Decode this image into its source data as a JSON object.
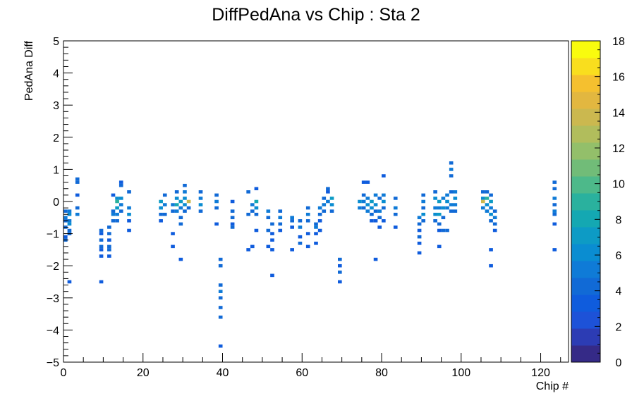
{
  "chart_data": {
    "type": "heatmap",
    "title": "DiffPedAna vs Chip : Sta 2",
    "xlabel": "Chip #",
    "ylabel": "PedAna Diff",
    "xlim": [
      0,
      127
    ],
    "ylim": [
      -5,
      5
    ],
    "x_ticks": [
      "0",
      "20",
      "40",
      "60",
      "80",
      "100",
      "120"
    ],
    "y_ticks": [
      "−5",
      "−4",
      "−3",
      "−2",
      "−1",
      "0",
      "1",
      "2",
      "3",
      "4",
      "5"
    ],
    "colorbar": {
      "min": 0,
      "max": 18,
      "ticks": [
        "0",
        "2",
        "4",
        "6",
        "8",
        "10",
        "12",
        "14",
        "16",
        "18"
      ]
    },
    "bin_width_x": 1,
    "bin_height_y": 0.1,
    "cells": [
      [
        0,
        -0.3,
        4
      ],
      [
        0,
        -0.5,
        5
      ],
      [
        0,
        -0.6,
        4
      ],
      [
        0,
        -0.8,
        4
      ],
      [
        0,
        -1.1,
        3
      ],
      [
        0,
        -1.2,
        4
      ],
      [
        1,
        -0.3,
        5
      ],
      [
        1,
        -0.4,
        6
      ],
      [
        1,
        -0.6,
        5
      ],
      [
        1,
        -0.7,
        6
      ],
      [
        1,
        -0.9,
        4
      ],
      [
        1,
        -1.0,
        4
      ],
      [
        1,
        -2.5,
        3
      ],
      [
        3,
        0.6,
        4
      ],
      [
        3,
        0.7,
        4
      ],
      [
        3,
        0.2,
        3
      ],
      [
        3,
        -0.2,
        4
      ],
      [
        3,
        -0.4,
        5
      ],
      [
        9,
        -0.9,
        4
      ],
      [
        9,
        -1.0,
        3
      ],
      [
        9,
        -1.2,
        4
      ],
      [
        9,
        -1.4,
        4
      ],
      [
        9,
        -1.5,
        3
      ],
      [
        9,
        -1.7,
        3
      ],
      [
        9,
        -2.5,
        3
      ],
      [
        11,
        -0.8,
        4
      ],
      [
        11,
        -1.0,
        4
      ],
      [
        11,
        -1.2,
        3
      ],
      [
        11,
        -1.4,
        4
      ],
      [
        11,
        -1.5,
        4
      ],
      [
        11,
        -1.7,
        3
      ],
      [
        12,
        -0.3,
        4
      ],
      [
        12,
        -0.4,
        5
      ],
      [
        12,
        -0.6,
        4
      ],
      [
        12,
        0.2,
        3
      ],
      [
        13,
        0.1,
        6
      ],
      [
        13,
        0.0,
        9
      ],
      [
        13,
        -0.2,
        7
      ],
      [
        13,
        -0.4,
        5
      ],
      [
        13,
        -0.6,
        4
      ],
      [
        14,
        0.5,
        4
      ],
      [
        14,
        0.6,
        3
      ],
      [
        14,
        0.1,
        6
      ],
      [
        14,
        -0.1,
        5
      ],
      [
        14,
        -0.3,
        4
      ],
      [
        16,
        0.3,
        4
      ],
      [
        16,
        -0.2,
        5
      ],
      [
        16,
        -0.4,
        6
      ],
      [
        16,
        -0.6,
        3
      ],
      [
        16,
        -0.9,
        3
      ],
      [
        24,
        0.0,
        7
      ],
      [
        24,
        -0.2,
        6
      ],
      [
        24,
        -0.4,
        4
      ],
      [
        24,
        -0.6,
        3
      ],
      [
        25,
        0.2,
        4
      ],
      [
        25,
        -0.1,
        5
      ],
      [
        25,
        -0.4,
        4
      ],
      [
        27,
        -0.1,
        5
      ],
      [
        27,
        -0.3,
        4
      ],
      [
        27,
        -1.0,
        3
      ],
      [
        27,
        -1.4,
        3
      ],
      [
        28,
        0.3,
        4
      ],
      [
        28,
        0.1,
        6
      ],
      [
        28,
        -0.1,
        8
      ],
      [
        28,
        -0.3,
        5
      ],
      [
        29,
        0.0,
        7
      ],
      [
        29,
        -0.2,
        5
      ],
      [
        29,
        -0.5,
        4
      ],
      [
        29,
        -0.7,
        4
      ],
      [
        29,
        -1.8,
        3
      ],
      [
        30,
        0.5,
        4
      ],
      [
        30,
        0.3,
        5
      ],
      [
        30,
        0.1,
        6
      ],
      [
        30,
        -0.1,
        6
      ],
      [
        30,
        -0.3,
        4
      ],
      [
        31,
        0.0,
        14
      ],
      [
        31,
        -0.2,
        4
      ],
      [
        34,
        0.3,
        4
      ],
      [
        34,
        0.1,
        5
      ],
      [
        34,
        -0.1,
        6
      ],
      [
        34,
        -0.3,
        4
      ],
      [
        38,
        0.2,
        4
      ],
      [
        38,
        0.0,
        5
      ],
      [
        38,
        -0.2,
        4
      ],
      [
        38,
        -0.7,
        3
      ],
      [
        39,
        -1.8,
        4
      ],
      [
        39,
        -2.0,
        4
      ],
      [
        39,
        -2.6,
        4
      ],
      [
        39,
        -2.8,
        5
      ],
      [
        39,
        -3.0,
        4
      ],
      [
        39,
        -3.3,
        4
      ],
      [
        39,
        -3.6,
        4
      ],
      [
        39,
        -4.5,
        3
      ],
      [
        42,
        0.0,
        3
      ],
      [
        42,
        -0.3,
        4
      ],
      [
        42,
        -0.5,
        4
      ],
      [
        42,
        -0.7,
        3
      ],
      [
        42,
        -0.8,
        4
      ],
      [
        46,
        0.3,
        4
      ],
      [
        46,
        -0.4,
        4
      ],
      [
        46,
        -1.5,
        3
      ],
      [
        47,
        -0.1,
        5
      ],
      [
        47,
        -0.3,
        4
      ],
      [
        47,
        -1.4,
        3
      ],
      [
        48,
        0.0,
        8
      ],
      [
        48,
        -0.2,
        6
      ],
      [
        48,
        -0.4,
        4
      ],
      [
        48,
        0.4,
        3
      ],
      [
        48,
        -0.9,
        3
      ],
      [
        51,
        -0.3,
        5
      ],
      [
        51,
        -0.5,
        4
      ],
      [
        51,
        -0.9,
        4
      ],
      [
        51,
        -1.4,
        3
      ],
      [
        52,
        -0.7,
        4
      ],
      [
        52,
        -1.0,
        3
      ],
      [
        52,
        -1.2,
        3
      ],
      [
        52,
        -1.5,
        3
      ],
      [
        52,
        -2.3,
        3
      ],
      [
        54,
        -0.3,
        4
      ],
      [
        54,
        -0.5,
        5
      ],
      [
        54,
        -0.7,
        4
      ],
      [
        54,
        -0.9,
        3
      ],
      [
        57,
        -0.5,
        5
      ],
      [
        57,
        -0.6,
        4
      ],
      [
        57,
        -0.8,
        3
      ],
      [
        57,
        -1.5,
        3
      ],
      [
        59,
        -0.6,
        4
      ],
      [
        59,
        -0.8,
        5
      ],
      [
        59,
        -1.1,
        3
      ],
      [
        59,
        -1.3,
        4
      ],
      [
        61,
        -0.2,
        4
      ],
      [
        61,
        -0.4,
        5
      ],
      [
        61,
        -0.6,
        4
      ],
      [
        61,
        -1.0,
        3
      ],
      [
        61,
        -1.4,
        3
      ],
      [
        63,
        -0.7,
        4
      ],
      [
        63,
        -0.8,
        5
      ],
      [
        63,
        -1.0,
        3
      ],
      [
        63,
        -1.3,
        3
      ],
      [
        64,
        -0.2,
        5
      ],
      [
        64,
        -0.4,
        4
      ],
      [
        64,
        -0.6,
        3
      ],
      [
        64,
        -0.9,
        3
      ],
      [
        65,
        0.1,
        4
      ],
      [
        65,
        -0.1,
        5
      ],
      [
        65,
        -0.3,
        4
      ],
      [
        66,
        0.0,
        5
      ],
      [
        66,
        0.3,
        3
      ],
      [
        66,
        0.4,
        4
      ],
      [
        67,
        0.1,
        7
      ],
      [
        67,
        -0.1,
        6
      ],
      [
        67,
        -0.3,
        4
      ],
      [
        69,
        -1.8,
        4
      ],
      [
        69,
        -2.0,
        3
      ],
      [
        69,
        -2.2,
        4
      ],
      [
        69,
        -2.5,
        3
      ],
      [
        74,
        0.0,
        6
      ],
      [
        74,
        -0.2,
        5
      ],
      [
        75,
        0.2,
        4
      ],
      [
        75,
        0.0,
        5
      ],
      [
        75,
        -0.2,
        4
      ],
      [
        75,
        0.6,
        3
      ],
      [
        76,
        0.1,
        5
      ],
      [
        76,
        -0.1,
        6
      ],
      [
        76,
        -0.3,
        5
      ],
      [
        76,
        0.6,
        3
      ],
      [
        77,
        0.0,
        7
      ],
      [
        77,
        -0.2,
        6
      ],
      [
        77,
        -0.4,
        4
      ],
      [
        77,
        -0.6,
        3
      ],
      [
        78,
        0.2,
        5
      ],
      [
        78,
        -0.1,
        6
      ],
      [
        78,
        -0.3,
        4
      ],
      [
        78,
        -0.6,
        3
      ],
      [
        78,
        -1.8,
        3
      ],
      [
        79,
        0.1,
        4
      ],
      [
        79,
        -0.3,
        5
      ],
      [
        79,
        -0.5,
        4
      ],
      [
        79,
        -0.8,
        3
      ],
      [
        80,
        0.2,
        5
      ],
      [
        80,
        0.0,
        6
      ],
      [
        80,
        -0.2,
        4
      ],
      [
        80,
        -0.6,
        3
      ],
      [
        80,
        0.8,
        3
      ],
      [
        83,
        0.1,
        4
      ],
      [
        83,
        -0.2,
        5
      ],
      [
        83,
        -0.4,
        4
      ],
      [
        83,
        -0.8,
        3
      ],
      [
        89,
        -0.5,
        5
      ],
      [
        89,
        -0.7,
        4
      ],
      [
        89,
        -0.9,
        3
      ],
      [
        89,
        -1.1,
        4
      ],
      [
        89,
        -1.3,
        3
      ],
      [
        89,
        -1.6,
        3
      ],
      [
        90,
        0.2,
        4
      ],
      [
        90,
        0.0,
        5
      ],
      [
        90,
        -0.2,
        4
      ],
      [
        90,
        -0.4,
        6
      ],
      [
        90,
        -0.6,
        4
      ],
      [
        93,
        0.3,
        4
      ],
      [
        93,
        0.1,
        6
      ],
      [
        93,
        -0.2,
        5
      ],
      [
        93,
        -0.4,
        6
      ],
      [
        93,
        -0.6,
        4
      ],
      [
        94,
        0.0,
        7
      ],
      [
        94,
        -0.2,
        5
      ],
      [
        94,
        -0.4,
        7
      ],
      [
        94,
        -0.7,
        4
      ],
      [
        94,
        -0.9,
        3
      ],
      [
        94,
        -1.4,
        3
      ],
      [
        95,
        0.1,
        5
      ],
      [
        95,
        -0.2,
        6
      ],
      [
        95,
        -0.5,
        4
      ],
      [
        95,
        -0.9,
        4
      ],
      [
        96,
        0.2,
        5
      ],
      [
        96,
        0.0,
        6
      ],
      [
        96,
        -0.2,
        5
      ],
      [
        96,
        -0.9,
        4
      ],
      [
        97,
        1.2,
        4
      ],
      [
        97,
        1.0,
        5
      ],
      [
        97,
        0.8,
        4
      ],
      [
        97,
        0.3,
        4
      ],
      [
        97,
        -0.1,
        5
      ],
      [
        97,
        -0.3,
        4
      ],
      [
        98,
        0.3,
        5
      ],
      [
        98,
        0.1,
        6
      ],
      [
        98,
        -0.1,
        5
      ],
      [
        98,
        -0.3,
        4
      ],
      [
        105,
        0.3,
        4
      ],
      [
        105,
        0.1,
        6
      ],
      [
        105,
        0.0,
        14
      ],
      [
        105,
        -0.2,
        5
      ],
      [
        106,
        0.3,
        4
      ],
      [
        106,
        0.1,
        9
      ],
      [
        106,
        -0.1,
        6
      ],
      [
        106,
        -0.3,
        5
      ],
      [
        107,
        0.2,
        4
      ],
      [
        107,
        0.0,
        7
      ],
      [
        107,
        -0.2,
        5
      ],
      [
        107,
        -0.4,
        6
      ],
      [
        107,
        -0.6,
        4
      ],
      [
        107,
        -1.5,
        3
      ],
      [
        107,
        -2.0,
        3
      ],
      [
        108,
        -0.3,
        4
      ],
      [
        108,
        -0.5,
        5
      ],
      [
        108,
        -0.7,
        4
      ],
      [
        108,
        -0.9,
        3
      ],
      [
        123,
        0.6,
        4
      ],
      [
        123,
        0.4,
        4
      ],
      [
        123,
        0.1,
        5
      ],
      [
        123,
        -0.1,
        4
      ],
      [
        123,
        -0.3,
        5
      ],
      [
        123,
        -0.4,
        4
      ],
      [
        123,
        -0.7,
        3
      ],
      [
        123,
        -1.5,
        3
      ]
    ]
  }
}
